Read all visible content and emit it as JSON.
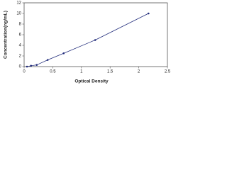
{
  "chart_data": {
    "type": "line",
    "x_label": "Optical Density",
    "y_label": "Concentration(ng/mL)",
    "series": [
      {
        "color": "#1f2a7a",
        "x": [
          0.05,
          0.12,
          0.22,
          0.41,
          0.69,
          1.24,
          2.17
        ],
        "values": [
          0,
          0.156,
          0.313,
          1.25,
          2.5,
          5,
          10
        ]
      }
    ],
    "xlim": [
      0,
      2.5
    ],
    "xticks": [
      0,
      0.5,
      1,
      1.5,
      2,
      2.5
    ],
    "ylim": [
      0,
      12
    ],
    "yticks": [
      0,
      2,
      4,
      6,
      8,
      10,
      12
    ],
    "markers": true
  }
}
